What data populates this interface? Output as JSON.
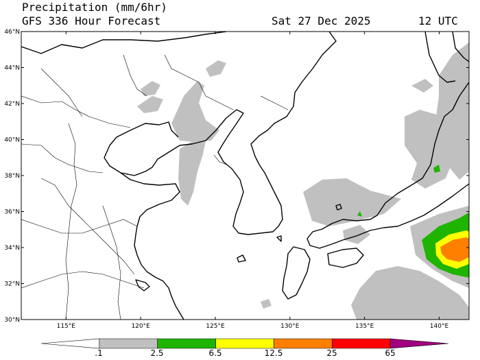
{
  "header": {
    "title": "Precipitation (mm/6hr)",
    "subtitle": "GFS 336 Hour Forecast",
    "valid_date": "Sat 27 Dec 2025",
    "valid_time": "12 UTC"
  },
  "map": {
    "lat_range": [
      30,
      46
    ],
    "lon_range": [
      112,
      142
    ],
    "lat_ticks": [
      "30°N",
      "32°N",
      "34°N",
      "36°N",
      "38°N",
      "40°N",
      "42°N",
      "44°N",
      "46°N"
    ],
    "lon_ticks": [
      "115°E",
      "120°E",
      "125°E",
      "130°E",
      "135°E",
      "140°E"
    ],
    "precip_color_light": "#c0c0c0",
    "precip_color_green": "#1fb400",
    "precip_color_yellow": "#ffff00",
    "precip_color_orange": "#ff8000"
  },
  "colorbar": {
    "labels": [
      ".1",
      "2.5",
      "6.5",
      "12.5",
      "25",
      "65"
    ],
    "colors": [
      "#ffffff",
      "#c0c0c0",
      "#1fb400",
      "#ffff00",
      "#ff8000",
      "#ff0000",
      "#a00080"
    ]
  }
}
